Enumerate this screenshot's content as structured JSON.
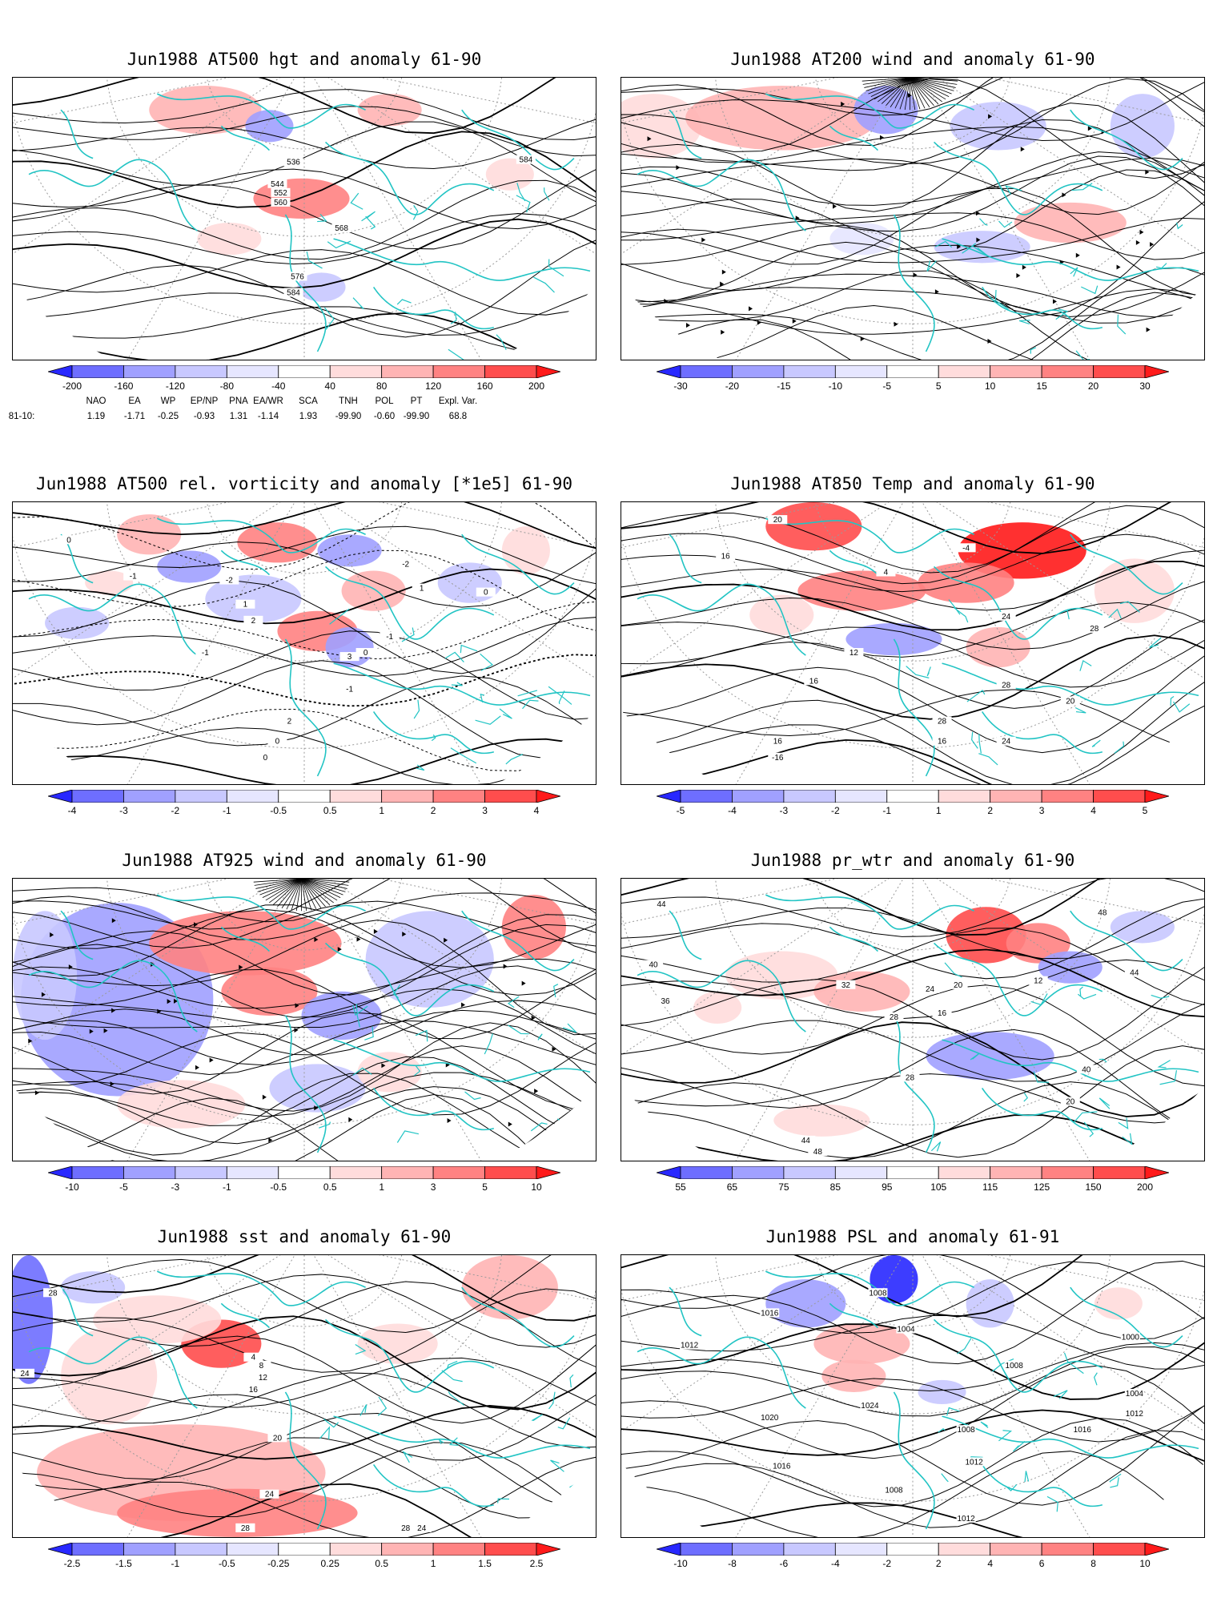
{
  "panels": [
    {
      "id": "p1",
      "title": "Jun1988 AT500 hgt and anomaly 61-90",
      "ticks": [
        "-200",
        "-160",
        "-120",
        "-80",
        "-40",
        "40",
        "80",
        "120",
        "160",
        "200"
      ],
      "contour_labels": [
        "536",
        "544",
        "552",
        "560",
        "568",
        "576",
        "584",
        "584"
      ],
      "style": "field",
      "teleconnection": {
        "names": [
          "NAO",
          "EA",
          "WP",
          "EP/NP",
          "PNA",
          "EA/WR",
          "SCA",
          "TNH",
          "POL",
          "PT",
          "Expl. Var."
        ],
        "row_label": "81-10:",
        "values": [
          "1.19",
          "-1.71",
          "-0.25",
          "-0.93",
          "1.31",
          "-1.14",
          "1.93",
          "-99.90",
          "-0.60",
          "-99.90",
          "68.8"
        ]
      }
    },
    {
      "id": "p2",
      "title": "Jun1988 AT200 wind and anomaly 61-90",
      "ticks": [
        "-30",
        "-20",
        "-15",
        "-10",
        "-5",
        "5",
        "10",
        "15",
        "20",
        "30"
      ],
      "contour_labels": [],
      "style": "stream"
    },
    {
      "id": "p3",
      "title": "Jun1988 AT500 rel. vorticity and anomaly [*1e5] 61-90",
      "ticks": [
        "-4",
        "-3",
        "-2",
        "-1",
        "-0.5",
        "0.5",
        "1",
        "2",
        "3",
        "4"
      ],
      "contour_labels": [
        "0",
        "-1",
        "-2",
        "1",
        "2",
        "3",
        "0",
        "-1",
        "-2",
        "1",
        "0",
        "-1",
        "2",
        "0",
        "-1",
        "0"
      ],
      "style": "field"
    },
    {
      "id": "p4",
      "title": "Jun1988 AT850 Temp and anomaly 61-90",
      "ticks": [
        "-5",
        "-4",
        "-3",
        "-2",
        "-1",
        "1",
        "2",
        "3",
        "4",
        "5"
      ],
      "contour_labels": [
        "20",
        "16",
        "-4",
        "4",
        "12",
        "16",
        "28",
        "24",
        "20",
        "28",
        "16",
        "16",
        "-16",
        "24",
        "28"
      ],
      "style": "field"
    },
    {
      "id": "p5",
      "title": "Jun1988 AT925 wind and anomaly 61-90",
      "ticks": [
        "-10",
        "-5",
        "-3",
        "-1",
        "-0.5",
        "0.5",
        "1",
        "3",
        "5",
        "10"
      ],
      "contour_labels": [],
      "style": "stream"
    },
    {
      "id": "p6",
      "title": "Jun1988 pr_wtr and anomaly 61-90",
      "ticks": [
        "55",
        "65",
        "75",
        "85",
        "95",
        "105",
        "115",
        "125",
        "150",
        "200"
      ],
      "contour_labels": [
        "44",
        "40",
        "36",
        "32",
        "28",
        "24",
        "20",
        "16",
        "12",
        "48",
        "44",
        "40",
        "20",
        "28",
        "48",
        "44"
      ],
      "style": "field"
    },
    {
      "id": "p7",
      "title": "Jun1988 sst and anomaly 61-90",
      "ticks": [
        "-2.5",
        "-1.5",
        "-1",
        "-0.5",
        "-0.25",
        "0.25",
        "0.5",
        "1",
        "1.5",
        "2.5"
      ],
      "contour_labels": [
        "28",
        "24",
        "16",
        "12",
        "8",
        "4",
        "20",
        "24",
        "28",
        "28",
        "28",
        "24"
      ],
      "style": "field"
    },
    {
      "id": "p8",
      "title": "Jun1988 PSL and anomaly 61-91",
      "ticks": [
        "-10",
        "-8",
        "-6",
        "-4",
        "-2",
        "2",
        "4",
        "6",
        "8",
        "10"
      ],
      "contour_labels": [
        "1012",
        "1016",
        "1008",
        "1004",
        "1020",
        "1024",
        "1008",
        "1000",
        "1004",
        "1012",
        "1016",
        "1008",
        "1012",
        "1012",
        "1008",
        "1016"
      ],
      "style": "field"
    }
  ],
  "colorbar_colors": [
    "#2828ff",
    "#6e6eff",
    "#a0a0ff",
    "#c8c8ff",
    "#e6e6ff",
    "#ffffff",
    "#ffdcdc",
    "#ffb4b4",
    "#ff8282",
    "#ff4d4d",
    "#ff1a1a"
  ]
}
